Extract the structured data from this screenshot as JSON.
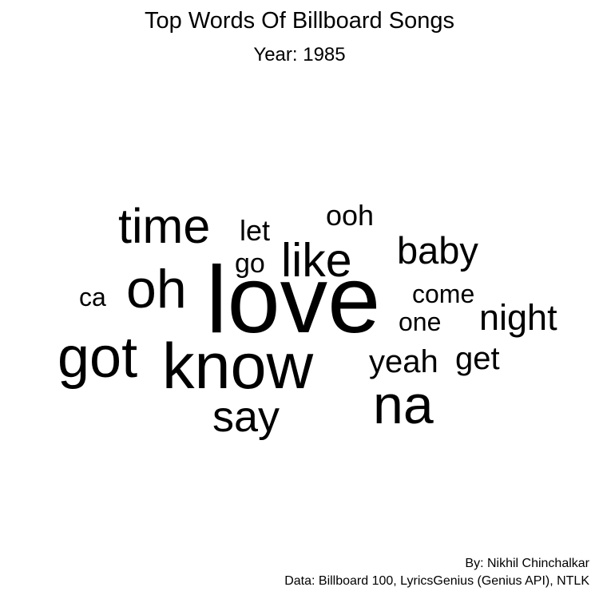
{
  "title": "Top Words Of Billboard Songs",
  "subtitle": "Year: 1985",
  "chart_data": {
    "type": "wordcloud",
    "title": "Top Words Of Billboard Songs",
    "subtitle": "Year: 1985",
    "words": [
      {
        "text": "love",
        "weight": 100
      },
      {
        "text": "know",
        "weight": 90
      },
      {
        "text": "got",
        "weight": 80
      },
      {
        "text": "oh",
        "weight": 76
      },
      {
        "text": "na",
        "weight": 76
      },
      {
        "text": "time",
        "weight": 68
      },
      {
        "text": "like",
        "weight": 66
      },
      {
        "text": "say",
        "weight": 60
      },
      {
        "text": "baby",
        "weight": 52
      },
      {
        "text": "night",
        "weight": 50
      },
      {
        "text": "yeah",
        "weight": 44
      },
      {
        "text": "get",
        "weight": 44
      },
      {
        "text": "ooh",
        "weight": 40
      },
      {
        "text": "let",
        "weight": 40
      },
      {
        "text": "go",
        "weight": 38
      },
      {
        "text": "come",
        "weight": 36
      },
      {
        "text": "one",
        "weight": 36
      },
      {
        "text": "ca",
        "weight": 36
      }
    ],
    "color": "#000000"
  },
  "credits": {
    "author": "By: Nikhil Chinchalkar",
    "source": "Data: Billboard 100, LyricsGenius (Genius API), NTLK"
  }
}
